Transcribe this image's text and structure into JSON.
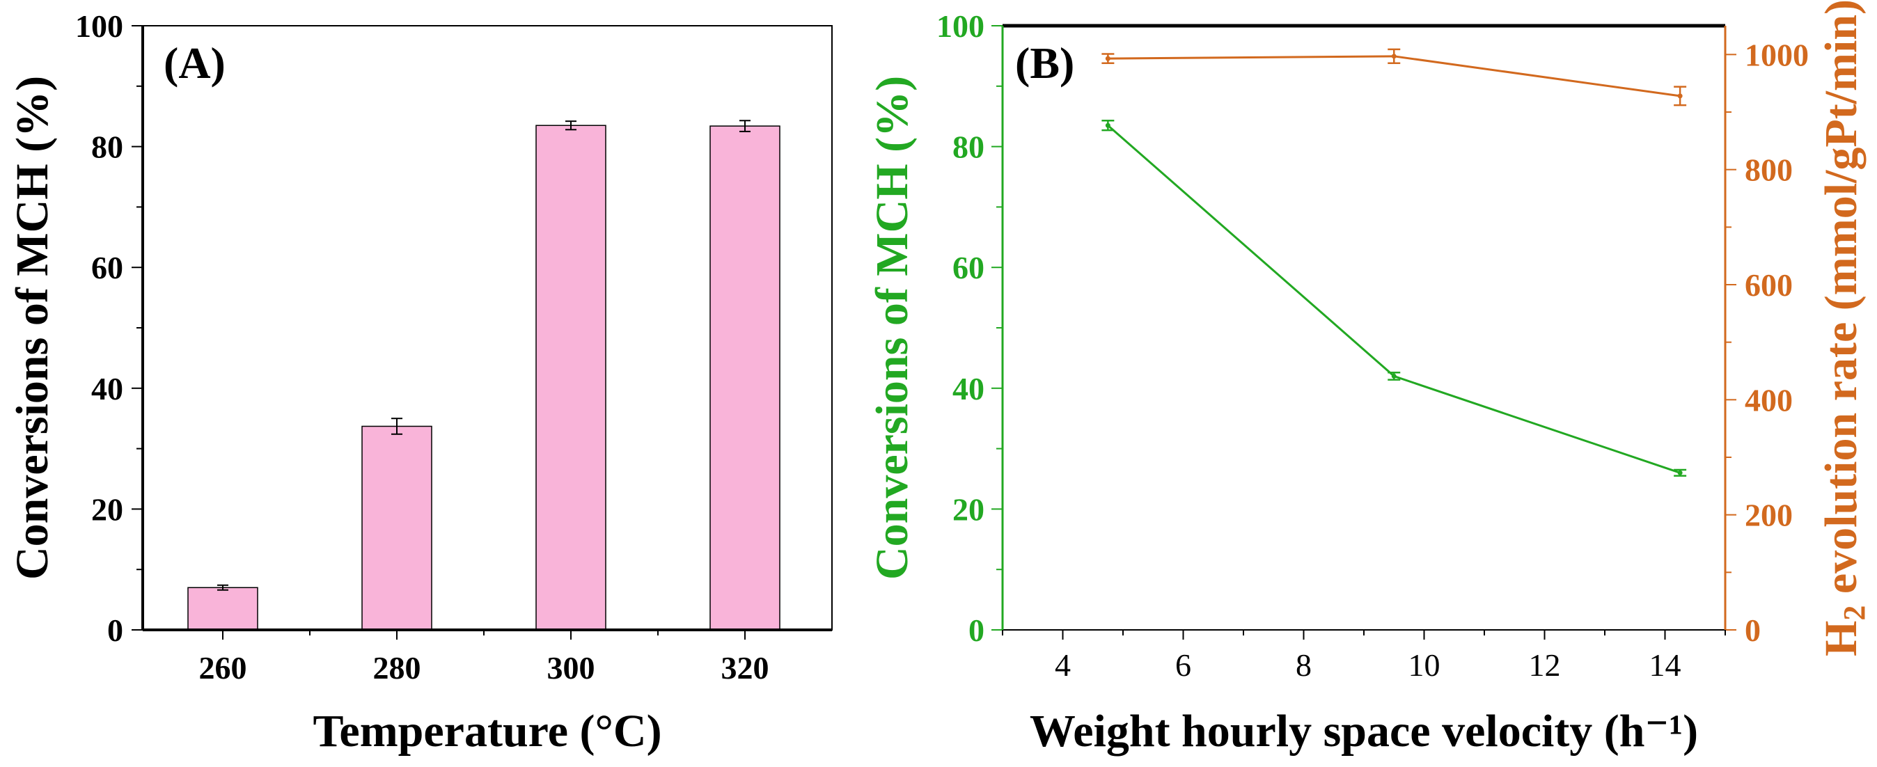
{
  "chart_data": [
    {
      "type": "bar",
      "panel_label": "(A)",
      "xlabel": "Temperature (°C)",
      "ylabel": "Conversions of MCH (%)",
      "categories": [
        "260",
        "280",
        "300",
        "320"
      ],
      "values": [
        7,
        33.7,
        83.5,
        83.4
      ],
      "errors": [
        0.4,
        1.3,
        0.7,
        0.9
      ],
      "ylim": [
        0,
        100
      ],
      "yticks": [
        "0",
        "20",
        "40",
        "60",
        "80",
        "100"
      ],
      "bar_color": "#f9b4d9"
    },
    {
      "type": "line",
      "panel_label": "(B)",
      "xlabel": "Weight hourly space velocity (h⁻¹)",
      "ylabel_left": "Conversions of MCH (%)",
      "ylabel_right": {
        "prefix": "H",
        "subscript": "2",
        "suffix": " evolution rate (mmol/gPt/min)"
      },
      "xlim": [
        3,
        15
      ],
      "xticks": [
        "4",
        "6",
        "8",
        "10",
        "12",
        "14"
      ],
      "ylim_left": [
        0,
        100
      ],
      "yticks_left": [
        "0",
        "20",
        "40",
        "60",
        "80",
        "100"
      ],
      "ylim_right": [
        0,
        1050
      ],
      "yticks_right": [
        "0",
        "200",
        "400",
        "600",
        "800",
        "1000"
      ],
      "series": [
        {
          "name": "Conversion",
          "axis": "left",
          "color": "#22a822",
          "x": [
            4.75,
            9.5,
            14.25
          ],
          "y": [
            83.5,
            42,
            26
          ],
          "err": [
            0.8,
            0.6,
            0.5
          ]
        },
        {
          "name": "H2 evolution rate",
          "axis": "right",
          "color": "#d2691e",
          "x": [
            4.75,
            9.5,
            14.25
          ],
          "y": [
            993,
            997,
            928
          ],
          "err": [
            8,
            12,
            16
          ]
        }
      ]
    }
  ]
}
